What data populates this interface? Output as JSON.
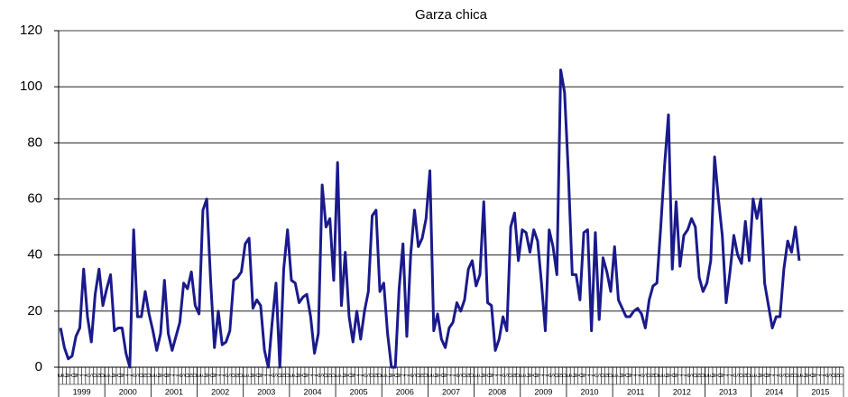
{
  "chart_data": {
    "type": "line",
    "title": "Garza chica",
    "categories": [
      "E",
      "F",
      "M",
      "A",
      "M",
      "J",
      "J",
      "A",
      "S",
      "O",
      "N",
      "D",
      "E",
      "F",
      "M",
      "A",
      "M",
      "J",
      "J",
      "A",
      "S",
      "O",
      "N",
      "D",
      "E",
      "F",
      "M",
      "A",
      "M",
      "J",
      "J",
      "A",
      "S",
      "O",
      "N",
      "D",
      "E",
      "F",
      "M",
      "A",
      "M",
      "J",
      "J",
      "A",
      "S",
      "O",
      "N",
      "D",
      "E",
      "F",
      "M",
      "A",
      "M",
      "J",
      "J",
      "A",
      "S",
      "O",
      "N",
      "D",
      "E",
      "F",
      "M",
      "A",
      "M",
      "J",
      "J",
      "A",
      "S",
      "O",
      "N",
      "D",
      "E",
      "F",
      "M",
      "A",
      "M",
      "J",
      "J",
      "A",
      "S",
      "O",
      "N",
      "D",
      "E",
      "F",
      "M",
      "A",
      "M",
      "J",
      "J",
      "A",
      "S",
      "O",
      "N",
      "D",
      "E",
      "F",
      "M",
      "A",
      "M",
      "J",
      "J",
      "A",
      "S",
      "O",
      "N",
      "D",
      "E",
      "F",
      "M",
      "A",
      "M",
      "J",
      "J",
      "A",
      "S",
      "O",
      "N",
      "D",
      "E",
      "F",
      "M",
      "A",
      "M",
      "J",
      "J",
      "A",
      "S",
      "O",
      "N",
      "D",
      "E",
      "F",
      "M",
      "A",
      "M",
      "J",
      "J",
      "A",
      "S",
      "O",
      "N",
      "D",
      "E",
      "F",
      "M",
      "A",
      "M",
      "J",
      "J",
      "A",
      "S",
      "O",
      "N",
      "D",
      "E",
      "F",
      "M",
      "A",
      "M",
      "J",
      "J",
      "A",
      "S",
      "O",
      "N",
      "D",
      "E",
      "F",
      "M",
      "A",
      "M",
      "J",
      "J",
      "A",
      "S",
      "O",
      "N",
      "D",
      "E",
      "F",
      "M",
      "A",
      "M",
      "J",
      "J",
      "A",
      "S",
      "O",
      "N",
      "D",
      "E",
      "F",
      "M",
      "A",
      "M",
      "J",
      "J",
      "A",
      "S",
      "O",
      "N",
      "D"
    ],
    "year_groups": [
      "1999",
      "2000",
      "2001",
      "2002",
      "2003",
      "2004",
      "2005",
      "2006",
      "2007",
      "2008",
      "2009",
      "2010",
      "2011",
      "2012",
      "2013",
      "2014",
      "2015"
    ],
    "series": [
      {
        "name": "Garza chica",
        "color": "#1a1a8c",
        "values": [
          14,
          7,
          3,
          4,
          11,
          14,
          35,
          18,
          9,
          26,
          35,
          22,
          28,
          33,
          13,
          14,
          14,
          5,
          0,
          49,
          18,
          18,
          27,
          19,
          13,
          6,
          12,
          31,
          12,
          6,
          11,
          16,
          30,
          28,
          34,
          22,
          19,
          56,
          60,
          31,
          7,
          20,
          8,
          9,
          13,
          31,
          32,
          34,
          44,
          46,
          21,
          24,
          22,
          6,
          0,
          16,
          30,
          0,
          35,
          49,
          31,
          30,
          23,
          25,
          26,
          18,
          5,
          12,
          65,
          50,
          53,
          31,
          73,
          22,
          41,
          18,
          9,
          20,
          10,
          20,
          27,
          54,
          56,
          27,
          30,
          12,
          0,
          0,
          28,
          44,
          11,
          40,
          56,
          43,
          46,
          53,
          70,
          13,
          19,
          10,
          7,
          14,
          16,
          23,
          20,
          24,
          35,
          38,
          29,
          33,
          59,
          23,
          22,
          6,
          10,
          18,
          13,
          50,
          55,
          38,
          49,
          48,
          41,
          49,
          45,
          30,
          13,
          49,
          43,
          33,
          106,
          98,
          69,
          33,
          33,
          24,
          48,
          49,
          13,
          48,
          17,
          39,
          34,
          27,
          43,
          24,
          21,
          18,
          18,
          20,
          21,
          19,
          14,
          24,
          29,
          30,
          50,
          72,
          90,
          35,
          59,
          36,
          47,
          49,
          53,
          50,
          32,
          27,
          30,
          38,
          75,
          60,
          47,
          23,
          34,
          47,
          40,
          37,
          52,
          38,
          60,
          53,
          60,
          30,
          22,
          14,
          18,
          18,
          35,
          45,
          41,
          50,
          38,
          null,
          null,
          null,
          null,
          null,
          null,
          null,
          null,
          null,
          null,
          null
        ]
      }
    ],
    "ylim": [
      0,
      120
    ],
    "yticks": [
      0,
      20,
      40,
      60,
      80,
      100,
      120
    ],
    "grid": true
  }
}
